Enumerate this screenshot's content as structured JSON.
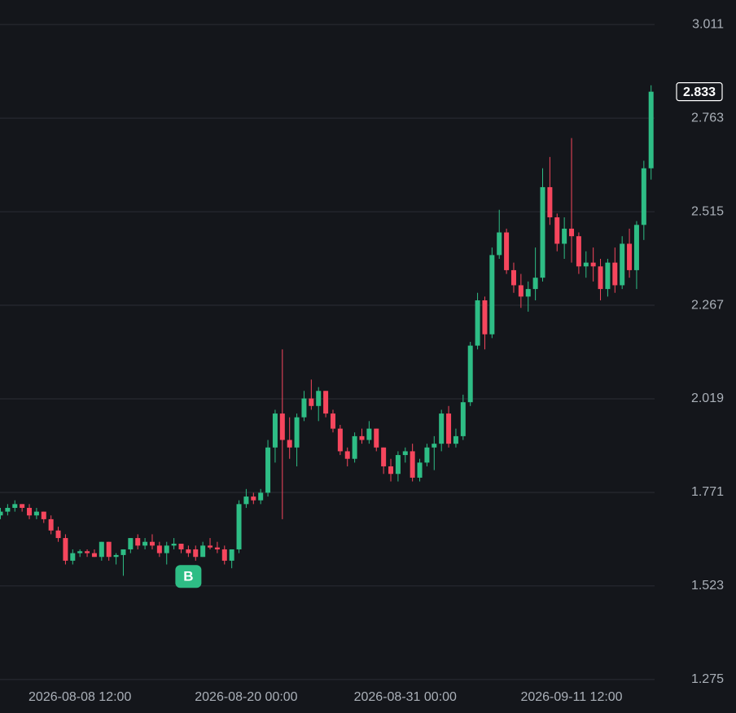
{
  "chart_data": {
    "type": "candlestick",
    "x": [
      "2026-08-03 00:00",
      "2026-08-03 12:00",
      "2026-08-04 00:00",
      "2026-08-04 12:00",
      "2026-08-05 00:00",
      "2026-08-05 12:00",
      "2026-08-06 00:00",
      "2026-08-06 12:00",
      "2026-08-07 00:00",
      "2026-08-07 12:00",
      "2026-08-08 00:00",
      "2026-08-08 12:00",
      "2026-08-09 00:00",
      "2026-08-09 12:00",
      "2026-08-10 00:00",
      "2026-08-10 12:00",
      "2026-08-11 00:00",
      "2026-08-11 12:00",
      "2026-08-12 00:00",
      "2026-08-12 12:00",
      "2026-08-13 00:00",
      "2026-08-13 12:00",
      "2026-08-14 00:00",
      "2026-08-14 12:00",
      "2026-08-15 00:00",
      "2026-08-15 12:00",
      "2026-08-16 00:00",
      "2026-08-16 12:00",
      "2026-08-17 00:00",
      "2026-08-17 12:00",
      "2026-08-18 00:00",
      "2026-08-18 12:00",
      "2026-08-19 00:00",
      "2026-08-19 12:00",
      "2026-08-20 00:00",
      "2026-08-20 12:00",
      "2026-08-21 00:00",
      "2026-08-21 12:00",
      "2026-08-22 00:00",
      "2026-08-22 12:00",
      "2026-08-23 00:00",
      "2026-08-23 12:00",
      "2026-08-24 00:00",
      "2026-08-24 12:00",
      "2026-08-25 00:00",
      "2026-08-25 12:00",
      "2026-08-26 00:00",
      "2026-08-26 12:00",
      "2026-08-27 00:00",
      "2026-08-27 12:00",
      "2026-08-28 00:00",
      "2026-08-28 12:00",
      "2026-08-29 00:00",
      "2026-08-29 12:00",
      "2026-08-30 00:00",
      "2026-08-30 12:00",
      "2026-08-31 00:00",
      "2026-08-31 12:00",
      "2026-09-01 00:00",
      "2026-09-01 12:00",
      "2026-09-02 00:00",
      "2026-09-02 12:00",
      "2026-09-03 00:00",
      "2026-09-03 12:00",
      "2026-09-04 00:00",
      "2026-09-04 12:00",
      "2026-09-05 00:00",
      "2026-09-05 12:00",
      "2026-09-06 00:00",
      "2026-09-06 12:00",
      "2026-09-07 00:00",
      "2026-09-07 12:00",
      "2026-09-08 00:00",
      "2026-09-08 12:00",
      "2026-09-09 00:00",
      "2026-09-09 12:00",
      "2026-09-10 00:00",
      "2026-09-10 12:00",
      "2026-09-11 00:00",
      "2026-09-11 12:00",
      "2026-09-12 00:00",
      "2026-09-12 12:00",
      "2026-09-13 00:00",
      "2026-09-13 12:00",
      "2026-09-14 00:00",
      "2026-09-14 12:00",
      "2026-09-15 00:00",
      "2026-09-15 12:00",
      "2026-09-16 00:00",
      "2026-09-16 12:00",
      "2026-09-17 00:00"
    ],
    "candles": [
      [
        1.71,
        1.73,
        1.7,
        1.72
      ],
      [
        1.72,
        1.74,
        1.71,
        1.73
      ],
      [
        1.73,
        1.75,
        1.72,
        1.74
      ],
      [
        1.74,
        1.74,
        1.72,
        1.73
      ],
      [
        1.73,
        1.74,
        1.7,
        1.71
      ],
      [
        1.71,
        1.73,
        1.7,
        1.72
      ],
      [
        1.72,
        1.72,
        1.69,
        1.7
      ],
      [
        1.7,
        1.71,
        1.66,
        1.67
      ],
      [
        1.67,
        1.68,
        1.64,
        1.65
      ],
      [
        1.65,
        1.66,
        1.58,
        1.59
      ],
      [
        1.59,
        1.62,
        1.58,
        1.61
      ],
      [
        1.61,
        1.62,
        1.6,
        1.615
      ],
      [
        1.615,
        1.62,
        1.6,
        1.61
      ],
      [
        1.61,
        1.62,
        1.6,
        1.6
      ],
      [
        1.6,
        1.64,
        1.59,
        1.64
      ],
      [
        1.64,
        1.64,
        1.59,
        1.6
      ],
      [
        1.6,
        1.61,
        1.58,
        1.605
      ],
      [
        1.605,
        1.62,
        1.55,
        1.62
      ],
      [
        1.62,
        1.65,
        1.61,
        1.65
      ],
      [
        1.65,
        1.66,
        1.62,
        1.63
      ],
      [
        1.63,
        1.65,
        1.62,
        1.64
      ],
      [
        1.64,
        1.66,
        1.62,
        1.63
      ],
      [
        1.63,
        1.64,
        1.6,
        1.61
      ],
      [
        1.61,
        1.64,
        1.58,
        1.63
      ],
      [
        1.63,
        1.65,
        1.62,
        1.635
      ],
      [
        1.635,
        1.635,
        1.61,
        1.62
      ],
      [
        1.62,
        1.63,
        1.6,
        1.61
      ],
      [
        1.62,
        1.63,
        1.59,
        1.6
      ],
      [
        1.6,
        1.64,
        1.6,
        1.63
      ],
      [
        1.63,
        1.65,
        1.62,
        1.625
      ],
      [
        1.625,
        1.64,
        1.61,
        1.62
      ],
      [
        1.62,
        1.63,
        1.58,
        1.59
      ],
      [
        1.59,
        1.62,
        1.57,
        1.62
      ],
      [
        1.62,
        1.75,
        1.61,
        1.74
      ],
      [
        1.74,
        1.78,
        1.73,
        1.76
      ],
      [
        1.76,
        1.77,
        1.74,
        1.75
      ],
      [
        1.75,
        1.78,
        1.74,
        1.77
      ],
      [
        1.77,
        1.91,
        1.76,
        1.89
      ],
      [
        1.89,
        1.99,
        1.85,
        1.98
      ],
      [
        1.98,
        2.15,
        1.7,
        1.91
      ],
      [
        1.91,
        1.97,
        1.86,
        1.89
      ],
      [
        1.89,
        1.98,
        1.84,
        1.97
      ],
      [
        1.97,
        2.04,
        1.96,
        2.02
      ],
      [
        2.02,
        2.07,
        1.99,
        2.0
      ],
      [
        2.0,
        2.05,
        1.96,
        2.04
      ],
      [
        2.04,
        2.04,
        1.97,
        1.98
      ],
      [
        1.98,
        1.99,
        1.93,
        1.94
      ],
      [
        1.94,
        1.95,
        1.87,
        1.88
      ],
      [
        1.88,
        1.89,
        1.84,
        1.86
      ],
      [
        1.86,
        1.93,
        1.85,
        1.92
      ],
      [
        1.92,
        1.94,
        1.9,
        1.91
      ],
      [
        1.91,
        1.96,
        1.9,
        1.94
      ],
      [
        1.94,
        1.94,
        1.88,
        1.89
      ],
      [
        1.89,
        1.89,
        1.82,
        1.84
      ],
      [
        1.84,
        1.86,
        1.8,
        1.82
      ],
      [
        1.82,
        1.88,
        1.8,
        1.87
      ],
      [
        1.87,
        1.89,
        1.85,
        1.88
      ],
      [
        1.88,
        1.9,
        1.8,
        1.81
      ],
      [
        1.81,
        1.86,
        1.8,
        1.85
      ],
      [
        1.85,
        1.9,
        1.84,
        1.89
      ],
      [
        1.89,
        1.92,
        1.83,
        1.9
      ],
      [
        1.9,
        1.99,
        1.88,
        1.98
      ],
      [
        1.98,
        2.0,
        1.89,
        1.9
      ],
      [
        1.9,
        1.94,
        1.89,
        1.92
      ],
      [
        1.92,
        2.03,
        1.91,
        2.01
      ],
      [
        2.01,
        2.17,
        2.0,
        2.16
      ],
      [
        2.16,
        2.3,
        2.15,
        2.28
      ],
      [
        2.28,
        2.29,
        2.15,
        2.19
      ],
      [
        2.19,
        2.42,
        2.18,
        2.4
      ],
      [
        2.4,
        2.52,
        2.39,
        2.46
      ],
      [
        2.46,
        2.47,
        2.35,
        2.36
      ],
      [
        2.36,
        2.38,
        2.3,
        2.32
      ],
      [
        2.32,
        2.35,
        2.26,
        2.29
      ],
      [
        2.29,
        2.33,
        2.25,
        2.31
      ],
      [
        2.31,
        2.42,
        2.28,
        2.34
      ],
      [
        2.34,
        2.63,
        2.33,
        2.58
      ],
      [
        2.58,
        2.66,
        2.48,
        2.5
      ],
      [
        2.5,
        2.51,
        2.41,
        2.43
      ],
      [
        2.43,
        2.5,
        2.39,
        2.47
      ],
      [
        2.47,
        2.71,
        2.38,
        2.45
      ],
      [
        2.45,
        2.46,
        2.35,
        2.37
      ],
      [
        2.37,
        2.41,
        2.34,
        2.38
      ],
      [
        2.38,
        2.42,
        2.33,
        2.37
      ],
      [
        2.37,
        2.39,
        2.28,
        2.31
      ],
      [
        2.31,
        2.39,
        2.29,
        2.38
      ],
      [
        2.38,
        2.42,
        2.3,
        2.32
      ],
      [
        2.32,
        2.45,
        2.31,
        2.43
      ],
      [
        2.43,
        2.47,
        2.34,
        2.36
      ],
      [
        2.36,
        2.49,
        2.31,
        2.48
      ],
      [
        2.48,
        2.65,
        2.44,
        2.63
      ],
      [
        2.63,
        2.85,
        2.6,
        2.833
      ]
    ],
    "up_color": "#2ebd85",
    "down_color": "#f6465d",
    "ylim": [
      1.264,
      3.076
    ],
    "yticks": [
      1.275,
      1.523,
      1.771,
      2.019,
      2.267,
      2.515,
      2.763,
      3.011
    ],
    "xticks": [
      "2026-08-08 12:00",
      "2026-08-20 00:00",
      "2026-08-31 00:00",
      "2026-09-11 12:00"
    ],
    "grid": true,
    "marker": {
      "label": "B",
      "x": "2026-08-16 00:00",
      "color": "#2ebd85"
    }
  }
}
